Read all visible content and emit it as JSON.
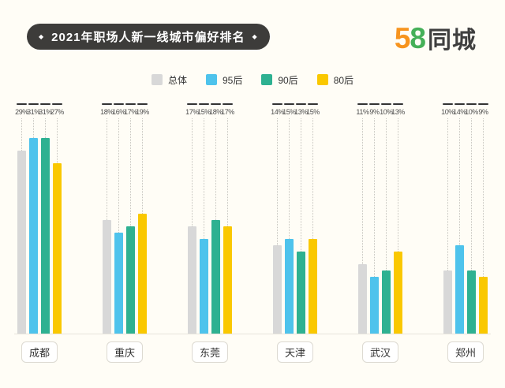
{
  "page": {
    "background": "#fffdf6"
  },
  "header": {
    "title": "2021年职场人新一线城市偏好排名",
    "diamond": "◆"
  },
  "logo": {
    "five": "5",
    "eight": "8",
    "suffix": "同城"
  },
  "chart_data": {
    "type": "bar",
    "title": "2021年职场人新一线城市偏好排名",
    "categories": [
      "成都",
      "重庆",
      "东莞",
      "天津",
      "武汉",
      "郑州"
    ],
    "series": [
      {
        "name": "总体",
        "color": "#d8d8d8",
        "values": [
          29,
          18,
          17,
          14,
          11,
          10
        ]
      },
      {
        "name": "95后",
        "color": "#4ec3ec",
        "values": [
          31,
          16,
          15,
          15,
          9,
          14
        ]
      },
      {
        "name": "90后",
        "color": "#2eb191",
        "values": [
          31,
          17,
          18,
          13,
          10,
          10
        ]
      },
      {
        "name": "80后",
        "color": "#fac800",
        "values": [
          27,
          19,
          17,
          15,
          13,
          9
        ]
      }
    ],
    "value_suffix": "%",
    "ylim": [
      0,
      31
    ],
    "legend_position": "top",
    "grid": false
  }
}
